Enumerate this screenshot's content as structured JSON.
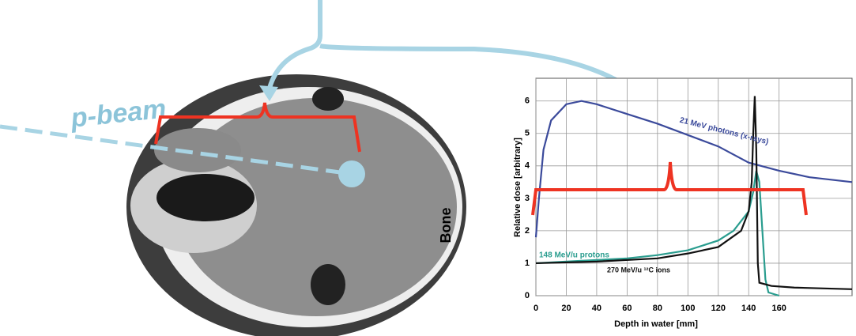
{
  "figure": {
    "beam_label": "p-beam",
    "tissue_label": "Bone"
  },
  "chart_data": {
    "type": "line",
    "x_label": "Depth in water [mm]",
    "y_label": "Relative dose [arbitrary]",
    "xlim": [
      0,
      208
    ],
    "ylim": [
      0,
      6.7
    ],
    "xticks": [
      0,
      20,
      40,
      60,
      80,
      100,
      120,
      140,
      160
    ],
    "yticks": [
      0,
      1,
      2,
      3,
      4,
      5,
      6
    ],
    "grid": true,
    "series": [
      {
        "name": "21 MeV photons (x-rays)",
        "color": "#3b4a9b",
        "x": [
          0,
          2,
          5,
          10,
          20,
          30,
          40,
          60,
          80,
          100,
          120,
          140,
          160,
          180,
          208
        ],
        "values": [
          1.8,
          3.0,
          4.5,
          5.4,
          5.9,
          6.0,
          5.9,
          5.6,
          5.3,
          4.95,
          4.6,
          4.1,
          3.85,
          3.65,
          3.5
        ]
      },
      {
        "name": "148 MeV/u protons",
        "color": "#2a9d8f",
        "x": [
          0,
          20,
          40,
          60,
          80,
          100,
          120,
          130,
          140,
          143,
          145,
          147,
          149,
          151,
          153,
          160
        ],
        "values": [
          1.0,
          1.05,
          1.1,
          1.15,
          1.25,
          1.4,
          1.7,
          2.0,
          2.6,
          3.2,
          3.85,
          3.5,
          2.0,
          0.5,
          0.1,
          0.0
        ]
      },
      {
        "name": "270 MeV/u ¹²C ions",
        "color": "#111111",
        "x": [
          0,
          40,
          80,
          100,
          120,
          135,
          140,
          142,
          143,
          144,
          145,
          146,
          147,
          155,
          170,
          208
        ],
        "values": [
          1.0,
          1.05,
          1.15,
          1.3,
          1.5,
          2.0,
          2.6,
          3.5,
          5.0,
          6.15,
          4.5,
          1.0,
          0.4,
          0.3,
          0.25,
          0.2
        ]
      }
    ]
  }
}
